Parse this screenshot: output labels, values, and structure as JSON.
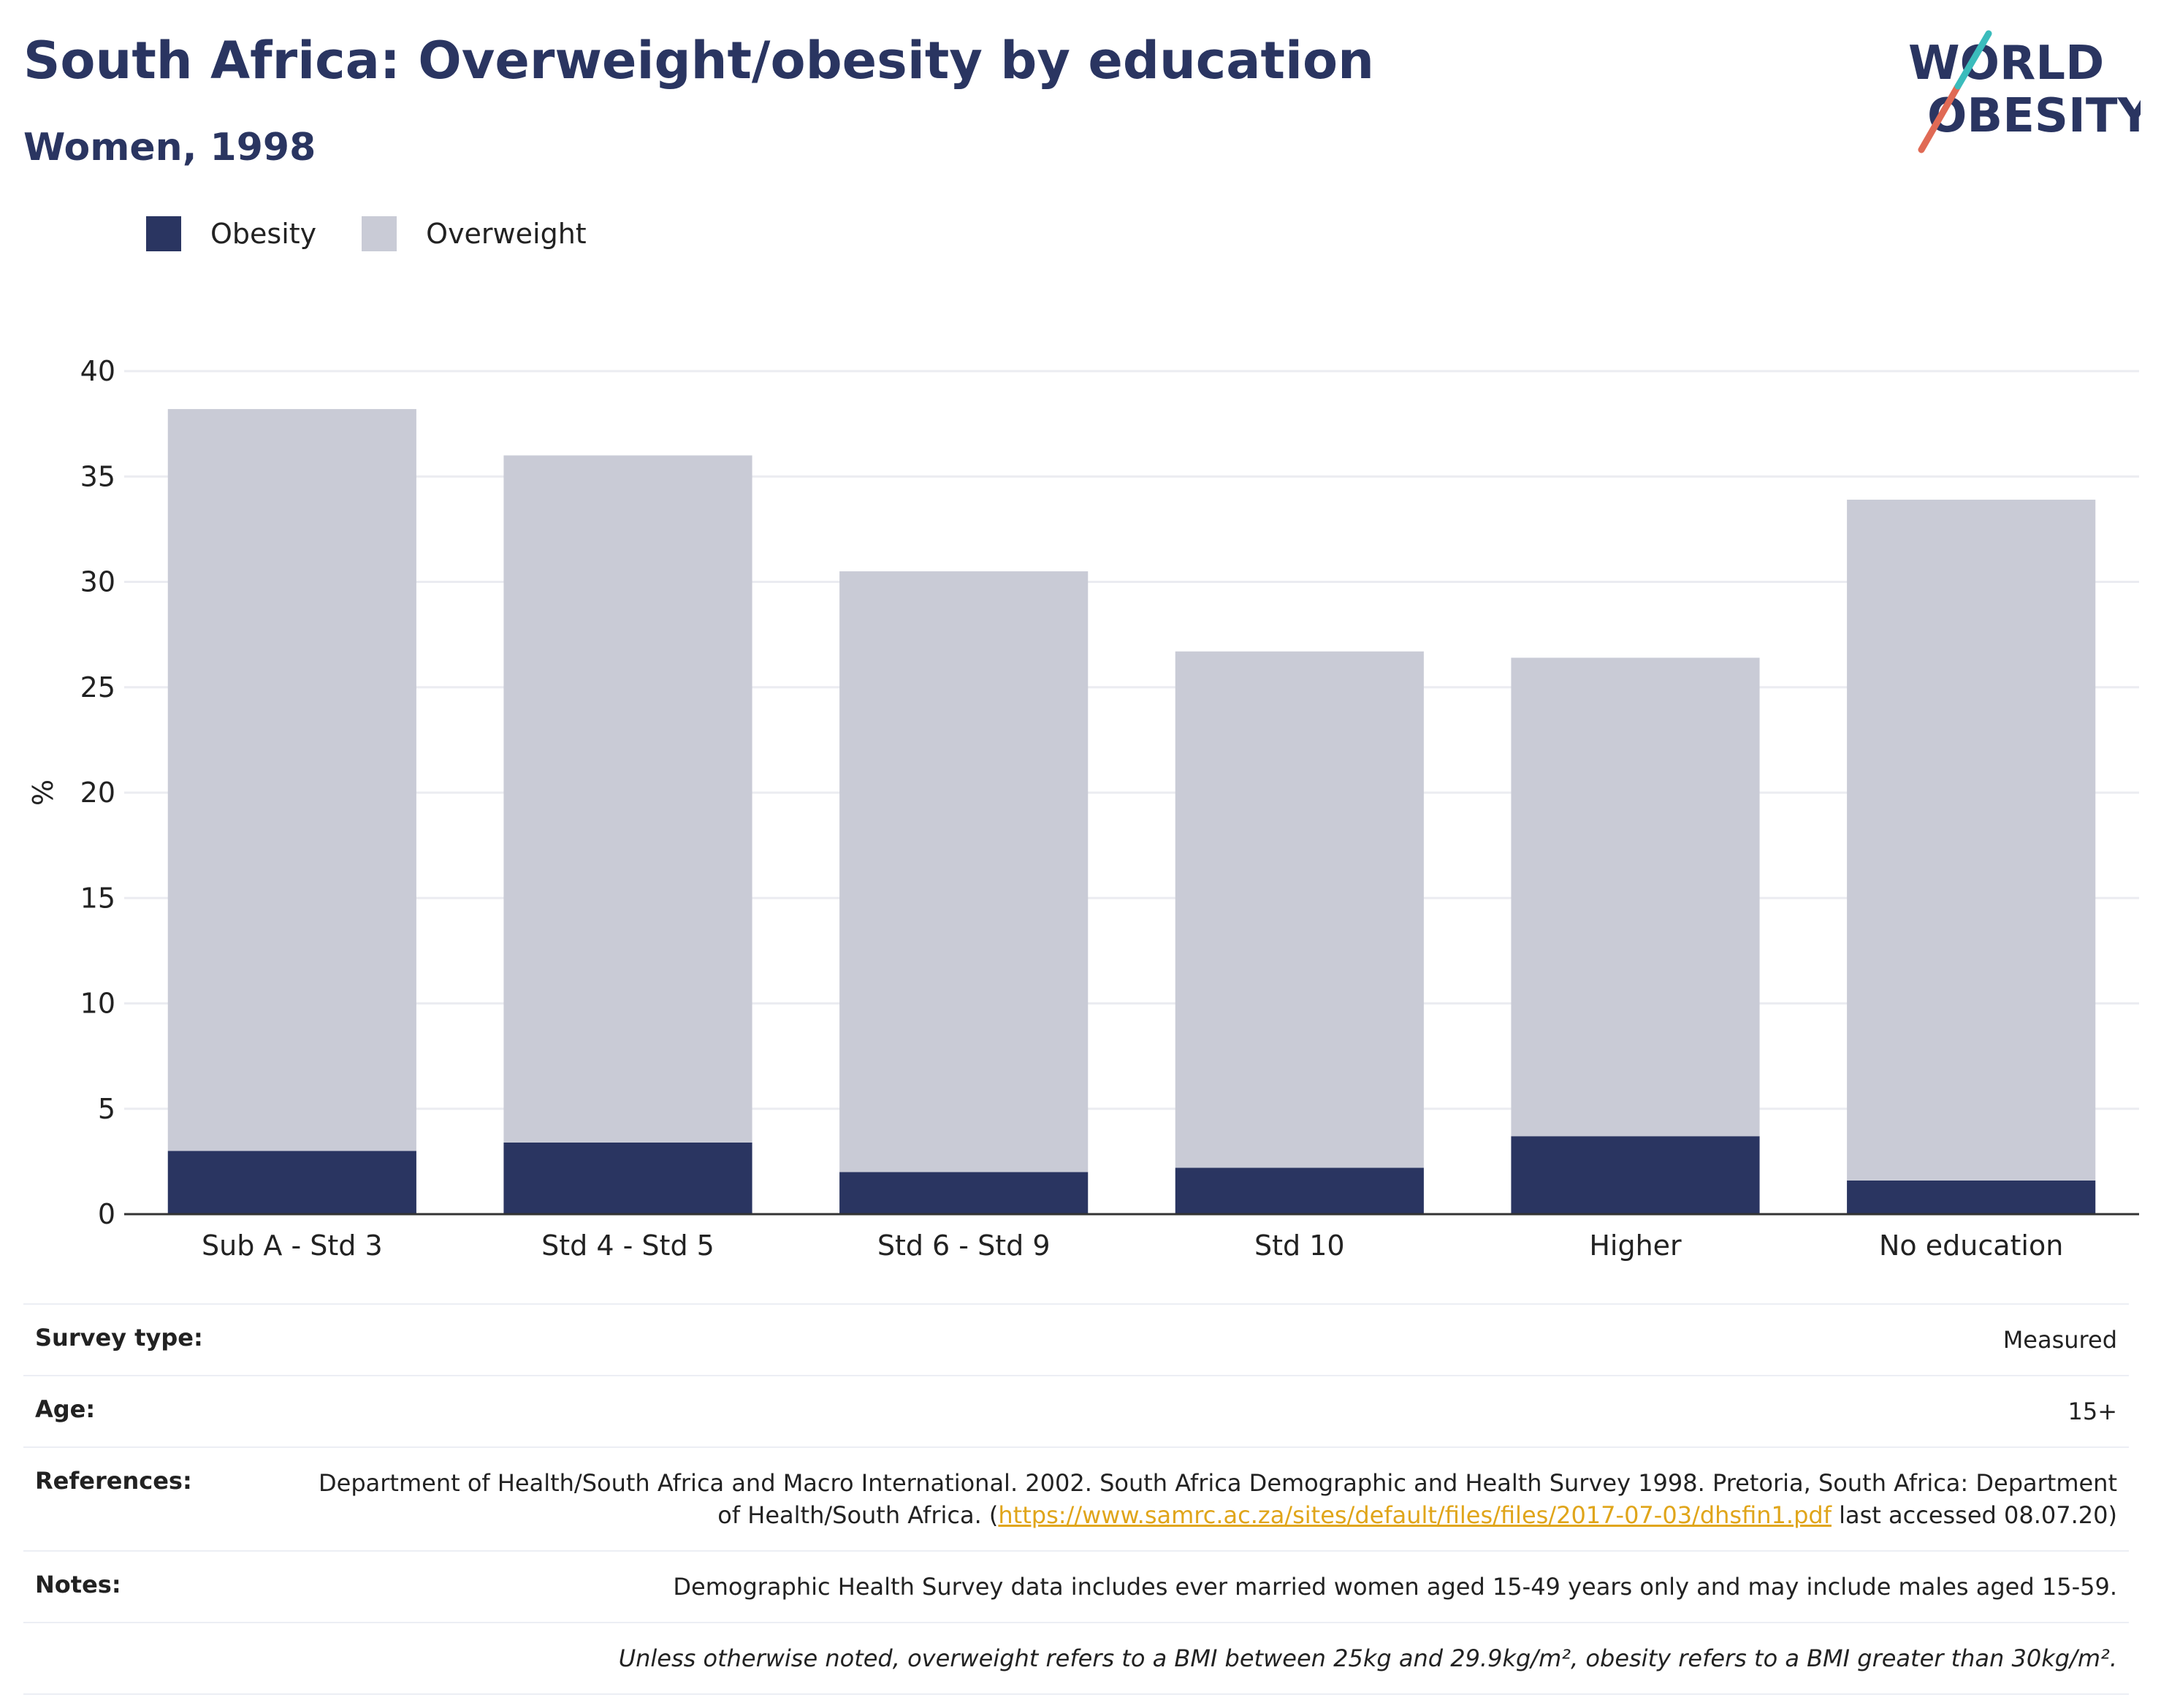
{
  "title": "South Africa: Overweight/obesity by education",
  "subtitle": "Women, 1998",
  "logo": {
    "line1": "WORLD",
    "line2": "OBESITY"
  },
  "legend": [
    {
      "name": "Obesity",
      "color": "#2a3561"
    },
    {
      "name": "Overweight",
      "color": "#c9cbd6"
    }
  ],
  "chart_data": {
    "type": "bar",
    "stacked": true,
    "categories": [
      "Sub A - Std 3",
      "Std 4 - Std 5",
      "Std 6 - Std 9",
      "Std 10",
      "Higher",
      "No education"
    ],
    "series": [
      {
        "name": "Obesity",
        "color": "#2a3561",
        "values": [
          3.0,
          3.4,
          2.0,
          2.2,
          3.7,
          1.6
        ]
      },
      {
        "name": "Overweight",
        "color": "#c9cbd6",
        "values": [
          35.2,
          32.6,
          28.5,
          24.5,
          22.7,
          32.3
        ]
      }
    ],
    "ylabel": "%",
    "ylim": [
      0,
      40
    ],
    "yticks": [
      0,
      5,
      10,
      15,
      20,
      25,
      30,
      35,
      40
    ],
    "grid": true,
    "legend_position": "top-left"
  },
  "info": {
    "survey_type_label": "Survey type:",
    "survey_type": "Measured",
    "age_label": "Age:",
    "age": "15+",
    "references_label": "References:",
    "references_text": "Department of Health/South Africa and Macro International. 2002. South Africa Demographic and Health Survey 1998. Pretoria, South Africa: Department of Health/South Africa. (",
    "references_link": "https://www.samrc.ac.za/sites/default/files/files/2017-07-03/dhsfin1.pdf",
    "references_tail": " last accessed 08.07.20)",
    "notes_label": "Notes:",
    "notes": "Demographic Health Survey data includes ever married women aged 15-49 years only and may include males aged 15-59.",
    "definition": "Unless otherwise noted, overweight refers to a BMI between 25kg and 29.9kg/m², obesity refers to a BMI greater than 30kg/m²."
  }
}
